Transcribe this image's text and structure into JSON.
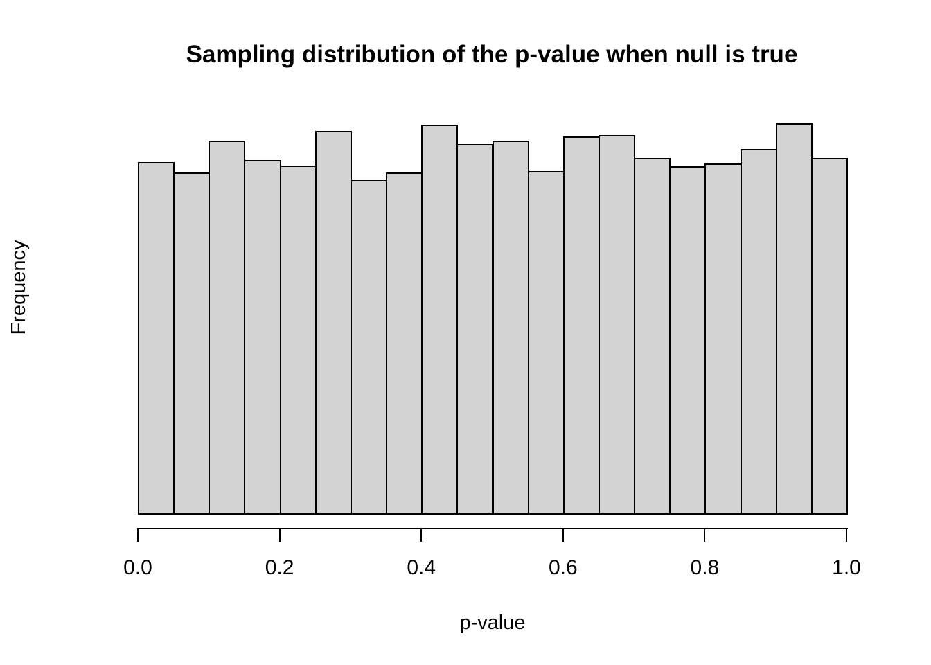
{
  "chart_data": {
    "type": "bar",
    "subtype": "histogram",
    "title": "Sampling distribution of the p-value when null is true",
    "xlabel": "p-value",
    "ylabel": "Frequency",
    "background_color": "#ffffff",
    "bar_fill_color": "#d3d3d3",
    "bar_border_color": "#000000",
    "x_range": [
      0.0,
      1.0
    ],
    "bin_width": 0.05,
    "bin_edges": [
      0.0,
      0.05,
      0.1,
      0.15,
      0.2,
      0.25,
      0.3,
      0.35,
      0.4,
      0.45,
      0.5,
      0.55,
      0.6,
      0.65,
      0.7,
      0.75,
      0.8,
      0.85,
      0.9,
      0.95,
      1.0
    ],
    "categories": [
      "0.00-0.05",
      "0.05-0.10",
      "0.10-0.15",
      "0.15-0.20",
      "0.20-0.25",
      "0.25-0.30",
      "0.30-0.35",
      "0.35-0.40",
      "0.40-0.45",
      "0.45-0.50",
      "0.50-0.55",
      "0.55-0.60",
      "0.60-0.65",
      "0.65-0.70",
      "0.70-0.75",
      "0.75-0.80",
      "0.80-0.85",
      "0.85-0.90",
      "0.90-0.95",
      "0.95-1.00"
    ],
    "values": [
      507,
      492,
      538,
      510,
      502,
      552,
      481,
      492,
      561,
      533,
      538,
      494,
      544,
      546,
      513,
      501,
      505,
      526,
      563,
      513
    ],
    "values_unit": "relative-height (y axis has no tick labels)",
    "y_axis_tick_labels_visible": false,
    "grid": false,
    "legend": "none",
    "x_ticks": [
      {
        "value": 0.0,
        "label": "0.0"
      },
      {
        "value": 0.2,
        "label": "0.2"
      },
      {
        "value": 0.4,
        "label": "0.4"
      },
      {
        "value": 0.6,
        "label": "0.6"
      },
      {
        "value": 0.8,
        "label": "0.8"
      },
      {
        "value": 1.0,
        "label": "1.0"
      }
    ]
  }
}
